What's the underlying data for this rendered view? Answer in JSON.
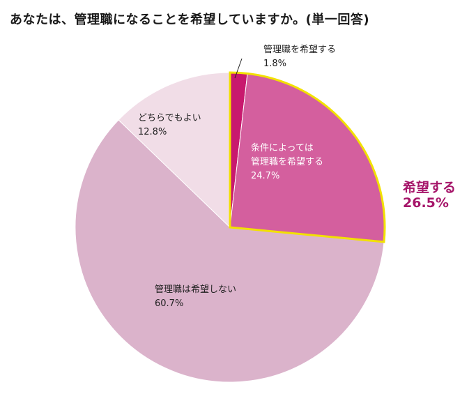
{
  "chart_data": {
    "type": "pie",
    "title": "あなたは、管理職になることを希望していますか。(単一回答)",
    "slices": [
      {
        "label": "管理職を希望する",
        "value": 1.8,
        "value_label": "1.8%",
        "color": "#c8196e"
      },
      {
        "label": "条件によっては管理職を希望する",
        "label_lines": [
          "条件によっては",
          "管理職を希望する"
        ],
        "value": 24.7,
        "value_label": "24.7%",
        "color": "#d45f9e"
      },
      {
        "label": "管理職は希望しない",
        "value": 60.7,
        "value_label": "60.7%",
        "color": "#dbb3cb"
      },
      {
        "label": "どちらでもよい",
        "value": 12.8,
        "value_label": "12.8%",
        "color": "#f1dde7"
      }
    ],
    "start": "12 o'clock",
    "direction": "clockwise",
    "highlight": {
      "label": "希望する",
      "value": 26.5,
      "value_label": "26.5%",
      "outline_color": "#f2e100",
      "text_color": "#a6166a"
    }
  }
}
